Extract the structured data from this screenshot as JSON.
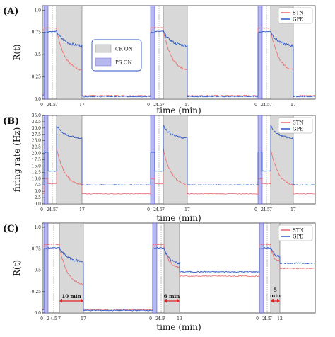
{
  "figure": {
    "panels": [
      {
        "label": "(A)",
        "ylabel": "R(t)",
        "xlabel": "time (min)"
      },
      {
        "label": "(B)",
        "ylabel": "firing rate (Hz)",
        "xlabel": "time (min)"
      },
      {
        "label": "(C)",
        "ylabel": "R(t)",
        "xlabel": "time (min)"
      }
    ],
    "legend_box": {
      "cr_label": "CR ON",
      "ps_label": "PS ON"
    }
  },
  "chart_data": [
    {
      "type": "line",
      "panel": "(A)",
      "xlabel": "time (min)",
      "ylabel": "R(t)",
      "ylim": [
        0,
        1.05
      ],
      "yticks": [
        "0.0",
        "0.25",
        "0.5",
        "0.75",
        "1.0"
      ],
      "segments": [
        {
          "xticks": [
            "0",
            "2",
            "4.5",
            "7",
            "17"
          ]
        },
        {
          "xticks": [
            "0",
            "2",
            "4.5",
            "7",
            "17"
          ]
        },
        {
          "xticks": [
            "0",
            "2",
            "4.5",
            "7",
            "17"
          ]
        }
      ],
      "series": [
        {
          "name": "STN",
          "color": "#e8696b",
          "values": {
            "pre": 0.05,
            "ps_level": 0.8,
            "gap": 0.8,
            "cr_start": 0.78,
            "cr_end": 0.33,
            "post": 0.04
          }
        },
        {
          "name": "GPE",
          "color": "#2d56c6",
          "values": {
            "pre": 0.04,
            "ps_level": 0.75,
            "gap": 0.76,
            "cr_start": 0.76,
            "cr_end": 0.6,
            "post": 0.03
          }
        }
      ],
      "legend": "top-right"
    },
    {
      "type": "line",
      "panel": "(B)",
      "xlabel": "time (min)",
      "ylabel": "firing rate (Hz)",
      "ylim": [
        0,
        35
      ],
      "yticks": [
        "0.0",
        "2.5",
        "5.0",
        "7.5",
        "10.0",
        "12.5",
        "15.0",
        "17.5",
        "20.0",
        "22.5",
        "25.0",
        "27.5",
        "30.0",
        "32.5",
        "35.0"
      ],
      "segments": [
        {
          "xticks": [
            "0",
            "2",
            "4.5",
            "7",
            "17"
          ]
        },
        {
          "xticks": [
            "0",
            "2",
            "4.5",
            "7",
            "17"
          ]
        },
        {
          "xticks": [
            "0",
            "2",
            "4.5",
            "7",
            "17"
          ]
        }
      ],
      "series": [
        {
          "name": "STN",
          "color": "#e8696b",
          "values": {
            "pre": 4.0,
            "ps_level": 10.0,
            "gap": 8.0,
            "cr_start": 22.0,
            "cr_end": 7.5,
            "post": 4.0
          }
        },
        {
          "name": "GPE",
          "color": "#2d56c6",
          "values": {
            "pre": 7.5,
            "ps_level": 20.5,
            "gap": 13.0,
            "cr_start": 31.0,
            "cr_end": 26.0,
            "post": 7.5
          }
        }
      ],
      "legend": "top-right"
    },
    {
      "type": "line",
      "panel": "(C)",
      "xlabel": "time (min)",
      "ylabel": "R(t)",
      "ylim": [
        0,
        1.05
      ],
      "yticks": [
        "0.0",
        "0.25",
        "0.5",
        "0.75",
        "1.0"
      ],
      "segments": [
        {
          "xticks": [
            "0",
            "2",
            "4.5",
            "7",
            "17"
          ],
          "duration_label": "10 min"
        },
        {
          "xticks": [
            "0",
            "2",
            "4.5",
            "7",
            "13"
          ],
          "duration_label": "6 min"
        },
        {
          "xticks": [
            "0",
            "2",
            "4.5",
            "7",
            "12"
          ],
          "duration_label": "5 min"
        }
      ],
      "series": [
        {
          "name": "STN",
          "color": "#e8696b",
          "values": {
            "pre": 0.05,
            "ps_level": 0.8,
            "gap": 0.8,
            "cr_start": 0.78,
            "cr_end_seg1": 0.33,
            "post_seg1": 0.04,
            "post_seg2": 0.43,
            "post_seg3": 0.52
          }
        },
        {
          "name": "GPE",
          "color": "#2d56c6",
          "values": {
            "pre": 0.04,
            "ps_level": 0.75,
            "gap": 0.76,
            "cr_start": 0.76,
            "cr_end_seg1": 0.6,
            "post_seg1": 0.03,
            "post_seg2": 0.48,
            "post_seg3": 0.58
          }
        }
      ],
      "legend": "top-right"
    }
  ]
}
